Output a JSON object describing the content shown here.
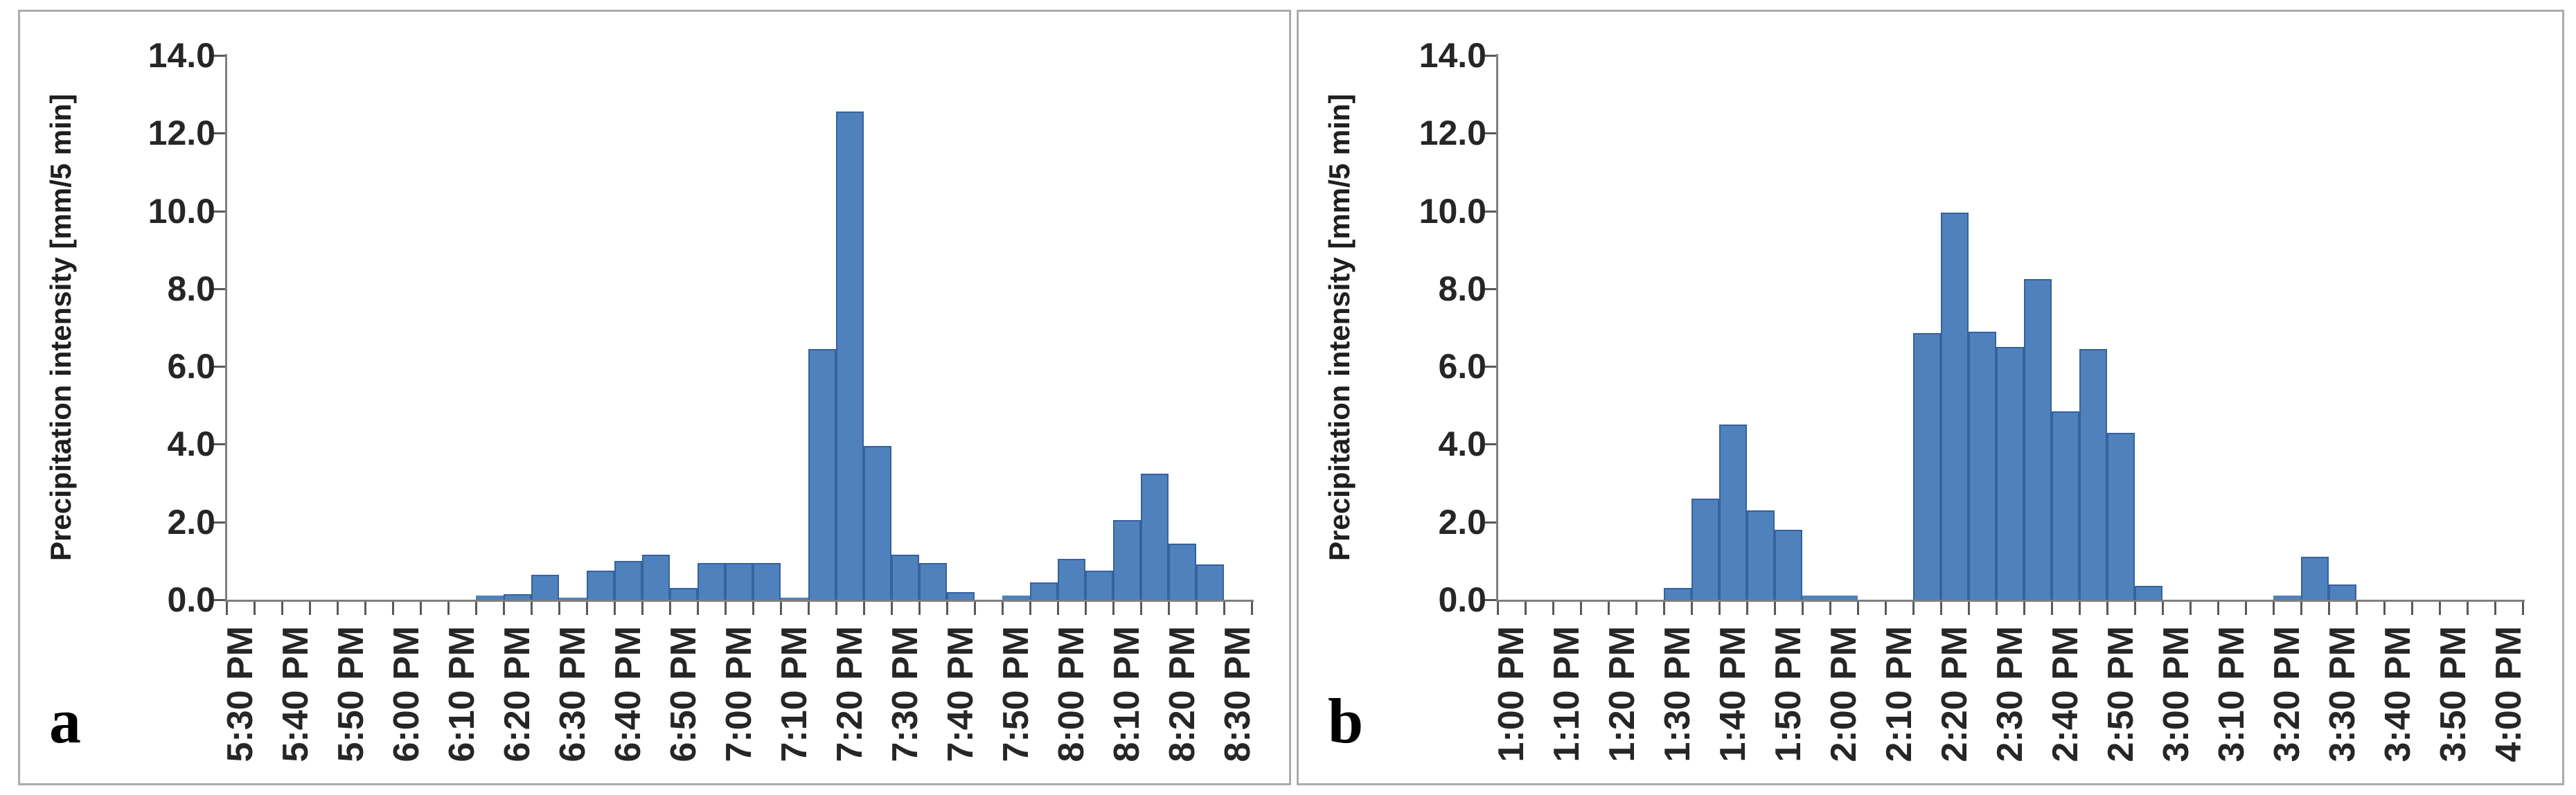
{
  "figure": {
    "background_color": "#ffffff",
    "panel_border_color": "#ababab"
  },
  "chart_data": [
    {
      "type": "bar",
      "panel_label": "a",
      "title": "",
      "xlabel": "",
      "ylabel": "Precipitation intensity [mm/5 min]",
      "ylim": [
        0,
        14
      ],
      "ytick_step": 2.0,
      "ytick_labels": [
        "0.0",
        "2.0",
        "4.0",
        "6.0",
        "8.0",
        "10.0",
        "12.0",
        "14.0"
      ],
      "x_label_every": 2,
      "grid": false,
      "legend": "none",
      "bar_color": "#4F81BD",
      "bar_border_color": "#36629E",
      "categories": [
        "5:30 PM",
        "5:35 PM",
        "5:40 PM",
        "5:45 PM",
        "5:50 PM",
        "5:55 PM",
        "6:00 PM",
        "6:05 PM",
        "6:10 PM",
        "6:15 PM",
        "6:20 PM",
        "6:25 PM",
        "6:30 PM",
        "6:35 PM",
        "6:40 PM",
        "6:45 PM",
        "6:50 PM",
        "6:55 PM",
        "7:00 PM",
        "7:05 PM",
        "7:10 PM",
        "7:15 PM",
        "7:20 PM",
        "7:25 PM",
        "7:30 PM",
        "7:35 PM",
        "7:40 PM",
        "7:45 PM",
        "7:50 PM",
        "7:55 PM",
        "8:00 PM",
        "8:05 PM",
        "8:10 PM",
        "8:15 PM",
        "8:20 PM",
        "8:25 PM",
        "8:30 PM"
      ],
      "values": [
        0,
        0,
        0,
        0,
        0,
        0,
        0,
        0,
        0,
        0.1,
        0.15,
        0.65,
        0.05,
        0.75,
        1.0,
        1.15,
        0.3,
        0.95,
        0.95,
        0.95,
        0.05,
        6.45,
        12.55,
        3.95,
        1.15,
        0.95,
        0.2,
        0,
        0.1,
        0.45,
        1.05,
        0.75,
        2.05,
        3.25,
        1.45,
        0.9,
        0
      ]
    },
    {
      "type": "bar",
      "panel_label": "b",
      "title": "",
      "xlabel": "",
      "ylabel": "Precipitation intensity [mm/5 min]",
      "ylim": [
        0,
        14
      ],
      "ytick_step": 2.0,
      "ytick_labels": [
        "0.0",
        "2.0",
        "4.0",
        "6.0",
        "8.0",
        "10.0",
        "12.0",
        "14.0"
      ],
      "x_label_every": 2,
      "grid": false,
      "legend": "none",
      "bar_color": "#4F81BD",
      "bar_border_color": "#36629E",
      "categories": [
        "1:00 PM",
        "1:05 PM",
        "1:10 PM",
        "1:15 PM",
        "1:20 PM",
        "1:25 PM",
        "1:30 PM",
        "1:35 PM",
        "1:40 PM",
        "1:45 PM",
        "1:50 PM",
        "1:55 PM",
        "2:00 PM",
        "2:05 PM",
        "2:10 PM",
        "2:15 PM",
        "2:20 PM",
        "2:25 PM",
        "2:30 PM",
        "2:35 PM",
        "2:40 PM",
        "2:45 PM",
        "2:50 PM",
        "2:55 PM",
        "3:00 PM",
        "3:05 PM",
        "3:10 PM",
        "3:15 PM",
        "3:20 PM",
        "3:25 PM",
        "3:30 PM",
        "3:35 PM",
        "3:40 PM",
        "3:45 PM",
        "3:50 PM",
        "3:55 PM",
        "4:00 PM"
      ],
      "values": [
        0,
        0,
        0,
        0,
        0,
        0,
        0.3,
        2.6,
        4.5,
        2.3,
        1.8,
        0.1,
        0.1,
        0,
        0,
        6.85,
        9.95,
        6.9,
        6.5,
        8.25,
        4.85,
        6.45,
        4.3,
        0.35,
        0,
        0,
        0,
        0,
        0.1,
        1.1,
        0.4,
        0,
        0,
        0,
        0,
        0,
        0
      ]
    }
  ]
}
